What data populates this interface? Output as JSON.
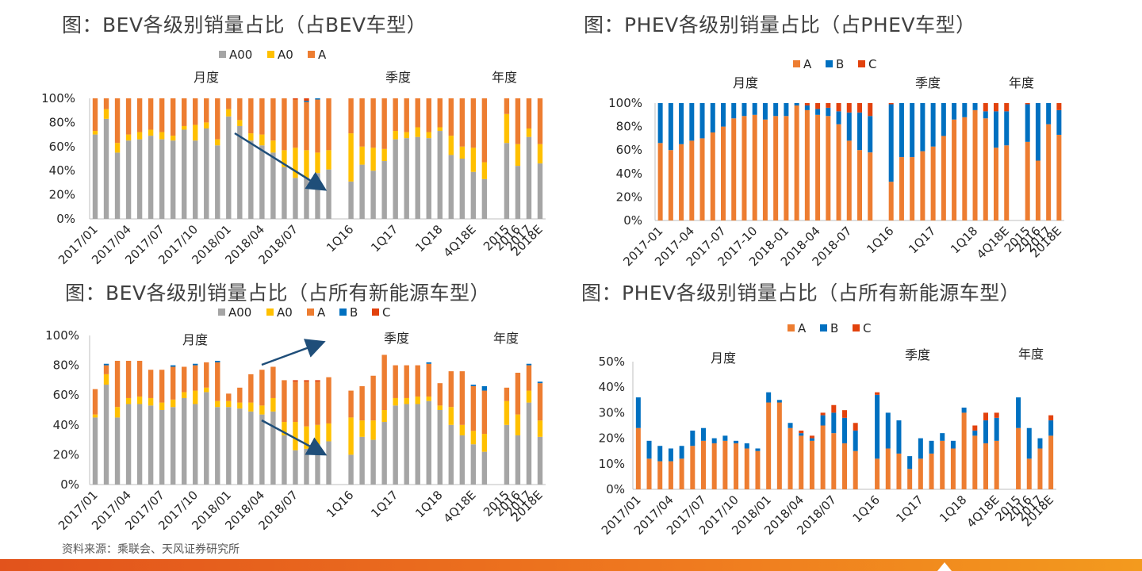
{
  "titles": {
    "c1": "图：BEV各级别销量占比（占BEV车型）",
    "c2": "图：PHEV各级别销量占比（占PHEV车型）",
    "c3": "图：BEV各级别销量占比（占所有新能源车型）",
    "c4": "图：PHEV各级别销量占比（占所有新能源车型）"
  },
  "source": "资料来源：乘联会、天风证券研究所",
  "colors": {
    "A00": "#a5a5a5",
    "A0": "#ffc000",
    "A": "#ed7d31",
    "B": "#0070c0",
    "C": "#e2420d",
    "arrow": "#1f4e79",
    "axis": "#bfbfbf"
  },
  "chart_data": [
    {
      "id": "c1",
      "type": "bar",
      "stacked": true,
      "title": "图：BEV各级别销量占比（占BEV车型）",
      "legend": [
        "A00",
        "A0",
        "A"
      ],
      "legend_position": "top",
      "ylim": [
        0,
        100
      ],
      "yticks": [
        "0%",
        "20%",
        "40%",
        "60%",
        "80%",
        "100%"
      ],
      "group_labels": [
        "月度",
        "季度",
        "年度"
      ],
      "x_tick_labels": [
        "2017/01",
        "2017/04",
        "2017/07",
        "2017/10",
        "2018/01",
        "2018/04",
        "2018/07",
        "1Q16",
        "1Q17",
        "1Q18",
        "4Q18E",
        "2015",
        "2016",
        "2017",
        "2018E"
      ],
      "series": [
        {
          "name": "A00",
          "values": [
            70,
            83,
            55,
            65,
            66,
            69,
            66,
            65,
            74,
            65,
            75,
            61,
            85,
            77,
            65,
            61,
            55,
            43,
            34,
            34,
            38,
            41,
            null,
            31,
            45,
            40,
            48,
            66,
            67,
            68,
            67,
            73,
            53,
            50,
            39,
            33,
            null,
            63,
            44,
            68,
            46
          ]
        },
        {
          "name": "A0",
          "values": [
            3,
            8,
            8,
            5,
            6,
            5,
            6,
            4,
            3,
            13,
            5,
            5,
            6,
            5,
            6,
            9,
            10,
            14,
            25,
            23,
            17,
            16,
            null,
            40,
            15,
            19,
            10,
            7,
            5,
            8,
            5,
            3,
            16,
            10,
            20,
            14,
            null,
            24,
            18,
            7,
            16
          ]
        },
        {
          "name": "A",
          "values": [
            27,
            9,
            37,
            30,
            28,
            26,
            28,
            31,
            23,
            22,
            20,
            34,
            9,
            18,
            29,
            30,
            35,
            43,
            40,
            40,
            44,
            43,
            null,
            29,
            40,
            41,
            42,
            27,
            28,
            24,
            28,
            24,
            31,
            40,
            41,
            53,
            null,
            13,
            38,
            25,
            38
          ]
        },
        {
          "name": "B",
          "values": [
            0,
            0,
            0,
            0,
            0,
            0,
            0,
            0,
            0,
            0,
            0,
            0,
            0,
            0,
            0,
            0,
            0,
            0,
            0,
            1,
            1,
            0,
            null,
            0,
            0,
            0,
            0,
            0,
            0,
            0,
            0,
            0,
            0,
            0,
            0,
            0,
            null,
            0,
            0,
            0,
            0
          ]
        },
        {
          "name": "C",
          "values": [
            0,
            0,
            0,
            0,
            0,
            0,
            0,
            0,
            0,
            0,
            0,
            0,
            0,
            0,
            0,
            0,
            0,
            0,
            1,
            2,
            0,
            0,
            null,
            0,
            0,
            0,
            0,
            0,
            0,
            0,
            0,
            0,
            0,
            0,
            0,
            0,
            null,
            0,
            0,
            0,
            0
          ]
        }
      ]
    },
    {
      "id": "c2",
      "type": "bar",
      "stacked": true,
      "title": "图：PHEV各级别销量占比（占PHEV车型）",
      "legend": [
        "A",
        "B",
        "C"
      ],
      "legend_position": "top",
      "ylim": [
        0,
        100
      ],
      "yticks": [
        "0%",
        "20%",
        "40%",
        "60%",
        "80%",
        "100%"
      ],
      "group_labels": [
        "月度",
        "季度",
        "年度"
      ],
      "x_tick_labels": [
        "2017-01",
        "2017-04",
        "2017-07",
        "2017-10",
        "2018-01",
        "2018-04",
        "2018-07",
        "1Q16",
        "1Q17",
        "1Q18",
        "4Q18E",
        "2015",
        "2016",
        "2017",
        "2018E"
      ],
      "series": [
        {
          "name": "A",
          "values": [
            66,
            60,
            65,
            68,
            70,
            75,
            80,
            87,
            89,
            90,
            86,
            89,
            89,
            98,
            94,
            90,
            89,
            82,
            68,
            60,
            58,
            null,
            33,
            54,
            54,
            59,
            63,
            72,
            86,
            88,
            94,
            87,
            62,
            64,
            null,
            67,
            51,
            82,
            73
          ]
        },
        {
          "name": "B",
          "values": [
            34,
            40,
            35,
            32,
            30,
            25,
            20,
            13,
            11,
            10,
            14,
            11,
            11,
            2,
            4,
            5,
            7,
            11,
            24,
            32,
            31,
            null,
            66,
            46,
            46,
            41,
            37,
            28,
            14,
            12,
            6,
            6,
            31,
            29,
            null,
            32,
            49,
            18,
            21
          ]
        },
        {
          "name": "C",
          "values": [
            0,
            0,
            0,
            0,
            0,
            0,
            0,
            0,
            0,
            0,
            0,
            0,
            0,
            0,
            2,
            5,
            4,
            7,
            8,
            8,
            11,
            null,
            1,
            0,
            0,
            0,
            0,
            0,
            0,
            0,
            0,
            7,
            7,
            7,
            null,
            1,
            0,
            0,
            6
          ]
        }
      ]
    },
    {
      "id": "c3",
      "type": "bar",
      "stacked": true,
      "title": "图：BEV各级别销量占比（占所有新能源车型）",
      "legend": [
        "A00",
        "A0",
        "A",
        "B",
        "C"
      ],
      "legend_position": "top",
      "ylim": [
        0,
        100
      ],
      "yticks": [
        "0%",
        "20%",
        "40%",
        "60%",
        "80%",
        "100%"
      ],
      "group_labels": [
        "月度",
        "季度",
        "年度"
      ],
      "x_tick_labels": [
        "2017/01",
        "2017/04",
        "2017/07",
        "2017/10",
        "2018/01",
        "2018/04",
        "2018/07",
        "1Q16",
        "1Q17",
        "1Q18",
        "4Q18E",
        "2015",
        "2016",
        "2017",
        "2018E"
      ],
      "series": [
        {
          "name": "A00",
          "values": [
            45,
            67,
            45,
            54,
            54,
            53,
            50,
            52,
            58,
            54,
            62,
            52,
            52,
            51,
            49,
            47,
            49,
            33,
            23,
            24,
            27,
            29,
            null,
            20,
            32,
            30,
            42,
            53,
            54,
            54,
            56,
            50,
            40,
            33,
            27,
            22,
            null,
            40,
            33,
            55,
            32
          ]
        },
        {
          "name": "A0",
          "values": [
            2,
            7,
            7,
            4,
            5,
            5,
            5,
            5,
            4,
            9,
            3,
            4,
            4,
            4,
            6,
            6,
            9,
            9,
            19,
            15,
            13,
            12,
            null,
            25,
            11,
            13,
            8,
            5,
            4,
            5,
            3,
            3,
            12,
            7,
            9,
            12,
            null,
            16,
            14,
            8,
            11
          ]
        },
        {
          "name": "A",
          "values": [
            17,
            6,
            31,
            25,
            24,
            19,
            22,
            22,
            17,
            17,
            17,
            26,
            5,
            10,
            19,
            24,
            21,
            28,
            27,
            30,
            29,
            31,
            null,
            18,
            23,
            30,
            37,
            22,
            22,
            21,
            22,
            15,
            24,
            36,
            30,
            29,
            null,
            9,
            28,
            17,
            25
          ]
        },
        {
          "name": "B",
          "values": [
            0,
            1,
            0,
            0,
            0,
            0,
            0,
            1,
            0,
            1,
            0,
            1,
            0,
            0,
            0,
            0,
            0,
            0,
            0,
            0,
            0,
            0,
            null,
            0,
            0,
            0,
            0,
            0,
            0,
            0,
            1,
            0,
            0,
            0,
            1,
            3,
            null,
            0,
            0,
            1,
            1
          ]
        },
        {
          "name": "C",
          "values": [
            0,
            0,
            0,
            0,
            0,
            0,
            0,
            0,
            0,
            0,
            0,
            0,
            0,
            0,
            0,
            0,
            0,
            0,
            1,
            1,
            1,
            0,
            null,
            0,
            0,
            0,
            0,
            0,
            0,
            0,
            0,
            0,
            0,
            0,
            0,
            0,
            null,
            0,
            0,
            0,
            0
          ]
        }
      ]
    },
    {
      "id": "c4",
      "type": "bar",
      "stacked": true,
      "title": "图：PHEV各级别销量占比（占所有新能源车型）",
      "legend": [
        "A",
        "B",
        "C"
      ],
      "legend_position": "top",
      "ylim": [
        0,
        50
      ],
      "yticks": [
        "0%",
        "10%",
        "20%",
        "30%",
        "40%",
        "50%"
      ],
      "group_labels": [
        "月度",
        "季度",
        "年度"
      ],
      "x_tick_labels": [
        "2017/01",
        "2017/04",
        "2017/07",
        "2017/10",
        "2018/01",
        "2018/04",
        "2018/07",
        "1Q16",
        "1Q17",
        "1Q18",
        "4Q18E",
        "2015",
        "2016",
        "2017",
        "2018E"
      ],
      "series": [
        {
          "name": "A",
          "values": [
            24,
            12,
            11,
            11,
            12,
            17,
            19,
            18,
            19,
            18,
            16,
            15,
            34,
            34,
            24,
            21,
            19,
            25,
            22,
            18,
            15,
            null,
            12,
            16,
            14,
            8,
            12,
            14,
            19,
            16,
            30,
            21,
            18,
            19,
            null,
            24,
            12,
            16,
            21
          ]
        },
        {
          "name": "B",
          "values": [
            12,
            7,
            6,
            5,
            5,
            6,
            5,
            2,
            2,
            1,
            2,
            1,
            4,
            1,
            2,
            1,
            1,
            4,
            8,
            10,
            8,
            null,
            25,
            14,
            13,
            5,
            8,
            5,
            3,
            3,
            2,
            2,
            9,
            9,
            null,
            12,
            12,
            4,
            6
          ]
        },
        {
          "name": "C",
          "values": [
            0,
            0,
            0,
            0,
            0,
            0,
            0,
            0,
            0,
            0,
            0,
            0,
            0,
            0,
            0,
            1,
            1,
            1,
            3,
            3,
            3,
            null,
            1,
            0,
            0,
            0,
            0,
            0,
            0,
            0,
            0,
            2,
            3,
            2,
            null,
            0,
            0,
            0,
            2
          ]
        }
      ]
    }
  ]
}
